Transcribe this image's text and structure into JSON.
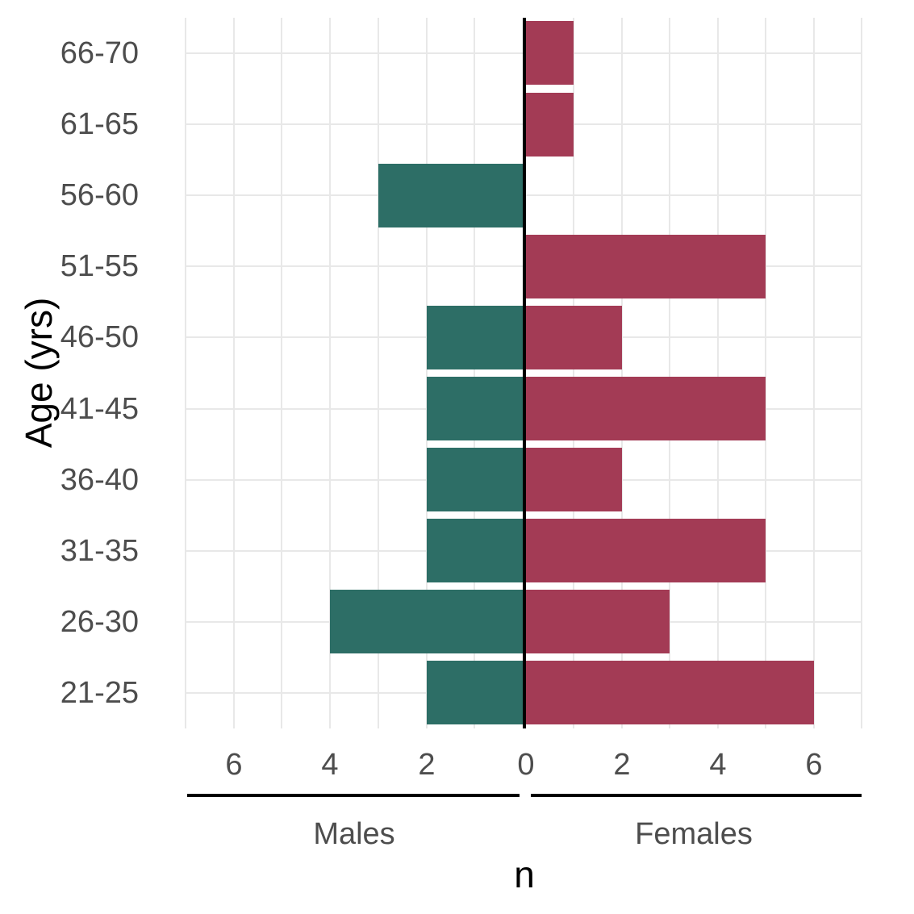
{
  "chart_data": {
    "type": "bar",
    "subtype": "population-pyramid",
    "orientation": "horizontal",
    "title": "",
    "xlabel": "n",
    "ylabel": "Age (yrs)",
    "categories_top_to_bottom": [
      "66-70",
      "61-65",
      "56-60",
      "51-55",
      "46-50",
      "41-45",
      "36-40",
      "31-35",
      "26-30",
      "21-25"
    ],
    "series": [
      {
        "name": "Males",
        "panel": "left",
        "values_top_to_bottom": [
          0,
          0,
          3,
          0,
          2,
          2,
          2,
          2,
          4,
          2
        ]
      },
      {
        "name": "Females",
        "panel": "right",
        "values_top_to_bottom": [
          1,
          1,
          0,
          5,
          2,
          5,
          2,
          5,
          3,
          6
        ]
      }
    ],
    "x_ticks_left_panel": [
      "6",
      "4",
      "2"
    ],
    "x_ticks_right_panel": [
      "0",
      "2",
      "4",
      "6"
    ],
    "x_tick_values_left_panel": [
      6,
      4,
      2
    ],
    "x_tick_values_right_panel": [
      0,
      2,
      4,
      6
    ],
    "xlim_per_panel": [
      0,
      7
    ],
    "grid": true,
    "gridline_unit_positions": [
      1,
      2,
      3,
      4,
      5,
      6,
      7
    ],
    "bar_relative_width": 0.9,
    "legend_position": "none"
  },
  "facets": {
    "left_label": "Males",
    "right_label": "Females"
  },
  "colors": {
    "males_bar": "#2D6E66",
    "females_bar": "#A33B55",
    "grid": "#E8E8E8",
    "axis_line": "#000000",
    "zero_divider": "#000000",
    "tick_text": "#4D4D4D",
    "title_text": "#000000",
    "background": "#FFFFFF"
  }
}
